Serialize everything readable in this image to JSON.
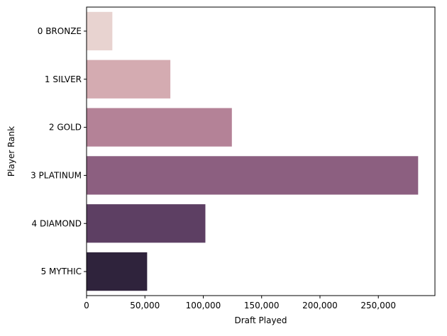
{
  "chart_data": {
    "type": "bar",
    "orientation": "horizontal",
    "title": "",
    "xlabel": "Draft Played",
    "ylabel": "Player Rank",
    "categories": [
      "0 BRONZE",
      "1 SILVER",
      "2 GOLD",
      "3 PLATINUM",
      "4 DIAMOND",
      "5 MYTHIC"
    ],
    "values": [
      22100,
      71800,
      124500,
      284100,
      101800,
      51900
    ],
    "colors": [
      "#e8d3d0",
      "#d4abb1",
      "#b48297",
      "#8c5f80",
      "#5d3f63",
      "#2f233c"
    ],
    "xlim": [
      0,
      298500
    ],
    "xticks": [
      0,
      50000,
      100000,
      150000,
      200000,
      250000
    ],
    "xtick_labels": [
      "0",
      "50,000",
      "100,000",
      "150,000",
      "200,000",
      "250,000"
    ],
    "grid": false
  }
}
